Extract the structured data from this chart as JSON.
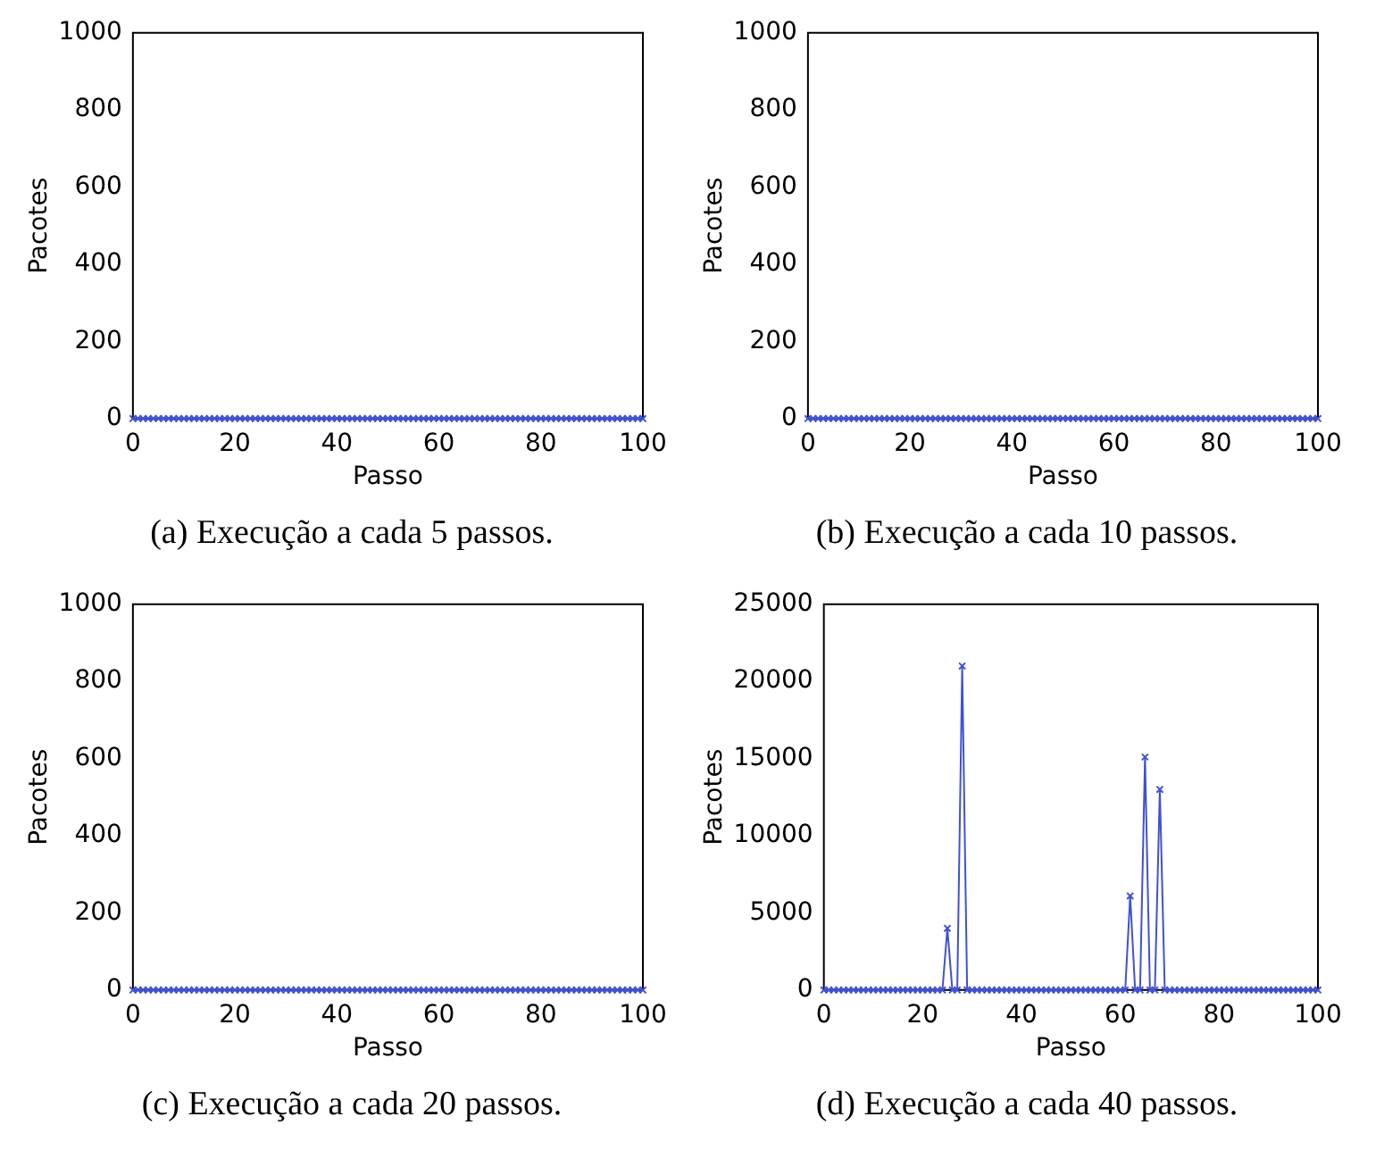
{
  "chart_data": [
    {
      "type": "line",
      "xlabel": "Passo",
      "ylabel": "Pacotes",
      "annotations": [
        "(a) Execução a cada 5 passos."
      ],
      "xlim": [
        0,
        100
      ],
      "xticks": [
        0,
        20,
        40,
        60,
        80,
        100
      ],
      "ylim": [
        0,
        1000
      ],
      "yticks": [
        0,
        200,
        400,
        600,
        800,
        1000
      ],
      "grid": false,
      "legend": false,
      "marker": "cross",
      "line_style": "solid",
      "x": [
        0,
        1,
        2,
        3,
        4,
        5,
        6,
        7,
        8,
        9,
        10,
        11,
        12,
        13,
        14,
        15,
        16,
        17,
        18,
        19,
        20,
        21,
        22,
        23,
        24,
        25,
        26,
        27,
        28,
        29,
        30,
        31,
        32,
        33,
        34,
        35,
        36,
        37,
        38,
        39,
        40,
        41,
        42,
        43,
        44,
        45,
        46,
        47,
        48,
        49,
        50,
        51,
        52,
        53,
        54,
        55,
        56,
        57,
        58,
        59,
        60,
        61,
        62,
        63,
        64,
        65,
        66,
        67,
        68,
        69,
        70,
        71,
        72,
        73,
        74,
        75,
        76,
        77,
        78,
        79,
        80,
        81,
        82,
        83,
        84,
        85,
        86,
        87,
        88,
        89,
        90,
        91,
        92,
        93,
        94,
        95,
        96,
        97,
        98,
        99,
        100
      ],
      "series": [
        {
          "color": "#3f51d6",
          "values": [
            0,
            0,
            0,
            0,
            0,
            0,
            0,
            0,
            0,
            0,
            0,
            0,
            0,
            0,
            0,
            0,
            0,
            0,
            0,
            0,
            0,
            0,
            0,
            0,
            0,
            0,
            0,
            0,
            0,
            0,
            0,
            0,
            0,
            0,
            0,
            0,
            0,
            0,
            0,
            0,
            0,
            0,
            0,
            0,
            0,
            0,
            0,
            0,
            0,
            0,
            0,
            0,
            0,
            0,
            0,
            0,
            0,
            0,
            0,
            0,
            0,
            0,
            0,
            0,
            0,
            0,
            0,
            0,
            0,
            0,
            0,
            0,
            0,
            0,
            0,
            0,
            0,
            0,
            0,
            0,
            0,
            0,
            0,
            0,
            0,
            0,
            0,
            0,
            0,
            0,
            0,
            0,
            0,
            0,
            0,
            0,
            0,
            0,
            0,
            0,
            0
          ]
        }
      ]
    },
    {
      "type": "line",
      "xlabel": "Passo",
      "ylabel": "Pacotes",
      "annotations": [
        "(b) Execução a cada 10 passos."
      ],
      "xlim": [
        0,
        100
      ],
      "xticks": [
        0,
        20,
        40,
        60,
        80,
        100
      ],
      "ylim": [
        0,
        1000
      ],
      "yticks": [
        0,
        200,
        400,
        600,
        800,
        1000
      ],
      "grid": false,
      "legend": false,
      "marker": "cross",
      "line_style": "solid",
      "x": [
        0,
        1,
        2,
        3,
        4,
        5,
        6,
        7,
        8,
        9,
        10,
        11,
        12,
        13,
        14,
        15,
        16,
        17,
        18,
        19,
        20,
        21,
        22,
        23,
        24,
        25,
        26,
        27,
        28,
        29,
        30,
        31,
        32,
        33,
        34,
        35,
        36,
        37,
        38,
        39,
        40,
        41,
        42,
        43,
        44,
        45,
        46,
        47,
        48,
        49,
        50,
        51,
        52,
        53,
        54,
        55,
        56,
        57,
        58,
        59,
        60,
        61,
        62,
        63,
        64,
        65,
        66,
        67,
        68,
        69,
        70,
        71,
        72,
        73,
        74,
        75,
        76,
        77,
        78,
        79,
        80,
        81,
        82,
        83,
        84,
        85,
        86,
        87,
        88,
        89,
        90,
        91,
        92,
        93,
        94,
        95,
        96,
        97,
        98,
        99,
        100
      ],
      "series": [
        {
          "color": "#3f51d6",
          "values": [
            0,
            0,
            0,
            0,
            0,
            0,
            0,
            0,
            0,
            0,
            0,
            0,
            0,
            0,
            0,
            0,
            0,
            0,
            0,
            0,
            0,
            0,
            0,
            0,
            0,
            0,
            0,
            0,
            0,
            0,
            0,
            0,
            0,
            0,
            0,
            0,
            0,
            0,
            0,
            0,
            0,
            0,
            0,
            0,
            0,
            0,
            0,
            0,
            0,
            0,
            0,
            0,
            0,
            0,
            0,
            0,
            0,
            0,
            0,
            0,
            0,
            0,
            0,
            0,
            0,
            0,
            0,
            0,
            0,
            0,
            0,
            0,
            0,
            0,
            0,
            0,
            0,
            0,
            0,
            0,
            0,
            0,
            0,
            0,
            0,
            0,
            0,
            0,
            0,
            0,
            0,
            0,
            0,
            0,
            0,
            0,
            0,
            0,
            0,
            0,
            0
          ]
        }
      ]
    },
    {
      "type": "line",
      "xlabel": "Passo",
      "ylabel": "Pacotes",
      "annotations": [
        "(c) Execução a cada 20 passos."
      ],
      "xlim": [
        0,
        100
      ],
      "xticks": [
        0,
        20,
        40,
        60,
        80,
        100
      ],
      "ylim": [
        0,
        1000
      ],
      "yticks": [
        0,
        200,
        400,
        600,
        800,
        1000
      ],
      "grid": false,
      "legend": false,
      "marker": "cross",
      "line_style": "solid",
      "x": [
        0,
        1,
        2,
        3,
        4,
        5,
        6,
        7,
        8,
        9,
        10,
        11,
        12,
        13,
        14,
        15,
        16,
        17,
        18,
        19,
        20,
        21,
        22,
        23,
        24,
        25,
        26,
        27,
        28,
        29,
        30,
        31,
        32,
        33,
        34,
        35,
        36,
        37,
        38,
        39,
        40,
        41,
        42,
        43,
        44,
        45,
        46,
        47,
        48,
        49,
        50,
        51,
        52,
        53,
        54,
        55,
        56,
        57,
        58,
        59,
        60,
        61,
        62,
        63,
        64,
        65,
        66,
        67,
        68,
        69,
        70,
        71,
        72,
        73,
        74,
        75,
        76,
        77,
        78,
        79,
        80,
        81,
        82,
        83,
        84,
        85,
        86,
        87,
        88,
        89,
        90,
        91,
        92,
        93,
        94,
        95,
        96,
        97,
        98,
        99,
        100
      ],
      "series": [
        {
          "color": "#3f51d6",
          "values": [
            0,
            0,
            0,
            0,
            0,
            0,
            0,
            0,
            0,
            0,
            0,
            0,
            0,
            0,
            0,
            0,
            0,
            0,
            0,
            0,
            0,
            0,
            0,
            0,
            0,
            0,
            0,
            0,
            0,
            0,
            0,
            0,
            0,
            0,
            0,
            0,
            0,
            0,
            0,
            0,
            0,
            0,
            0,
            0,
            0,
            0,
            0,
            0,
            0,
            0,
            0,
            0,
            0,
            0,
            0,
            0,
            0,
            0,
            0,
            0,
            0,
            0,
            0,
            0,
            0,
            0,
            0,
            0,
            0,
            0,
            0,
            0,
            0,
            0,
            0,
            0,
            0,
            0,
            0,
            0,
            0,
            0,
            0,
            0,
            0,
            0,
            0,
            0,
            0,
            0,
            0,
            0,
            0,
            0,
            0,
            0,
            0,
            0,
            0,
            0,
            0
          ]
        }
      ]
    },
    {
      "type": "line",
      "xlabel": "Passo",
      "ylabel": "Pacotes",
      "annotations": [
        "(d) Execução a cada 40 passos."
      ],
      "xlim": [
        0,
        100
      ],
      "xticks": [
        0,
        20,
        40,
        60,
        80,
        100
      ],
      "ylim": [
        0,
        25000
      ],
      "yticks": [
        0,
        5000,
        10000,
        15000,
        20000,
        25000
      ],
      "grid": false,
      "legend": false,
      "marker": "cross",
      "line_style": "solid",
      "x": [
        0,
        1,
        2,
        3,
        4,
        5,
        6,
        7,
        8,
        9,
        10,
        11,
        12,
        13,
        14,
        15,
        16,
        17,
        18,
        19,
        20,
        21,
        22,
        23,
        24,
        25,
        26,
        27,
        28,
        29,
        30,
        31,
        32,
        33,
        34,
        35,
        36,
        37,
        38,
        39,
        40,
        41,
        42,
        43,
        44,
        45,
        46,
        47,
        48,
        49,
        50,
        51,
        52,
        53,
        54,
        55,
        56,
        57,
        58,
        59,
        60,
        61,
        62,
        63,
        64,
        65,
        66,
        67,
        68,
        69,
        70,
        71,
        72,
        73,
        74,
        75,
        76,
        77,
        78,
        79,
        80,
        81,
        82,
        83,
        84,
        85,
        86,
        87,
        88,
        89,
        90,
        91,
        92,
        93,
        94,
        95,
        96,
        97,
        98,
        99,
        100
      ],
      "series": [
        {
          "color": "#3f51d6",
          "values": [
            0,
            0,
            0,
            0,
            0,
            0,
            0,
            0,
            0,
            0,
            0,
            0,
            0,
            0,
            0,
            0,
            0,
            0,
            0,
            0,
            0,
            0,
            0,
            0,
            0,
            4000,
            0,
            0,
            21000,
            0,
            0,
            0,
            0,
            0,
            0,
            0,
            0,
            0,
            0,
            0,
            0,
            0,
            0,
            0,
            0,
            0,
            0,
            0,
            0,
            0,
            0,
            0,
            0,
            0,
            0,
            0,
            0,
            0,
            0,
            0,
            0,
            0,
            6100,
            0,
            0,
            15100,
            0,
            0,
            13000,
            0,
            0,
            0,
            0,
            0,
            0,
            0,
            0,
            0,
            0,
            0,
            0,
            0,
            0,
            0,
            0,
            0,
            0,
            0,
            0,
            0,
            0,
            0,
            0,
            0,
            0,
            0,
            0,
            0,
            0,
            0,
            0
          ]
        }
      ]
    }
  ]
}
